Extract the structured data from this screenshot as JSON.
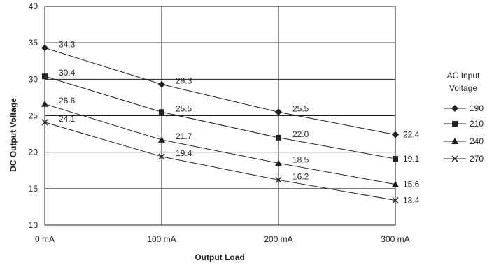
{
  "chart_data": {
    "type": "line",
    "xlabel": "Output Load",
    "ylabel": "DC Output Voltage",
    "categories": [
      "0 mA",
      "100 mA",
      "200 mA",
      "300 mA"
    ],
    "ylim": [
      10,
      40
    ],
    "yticks": [
      "10",
      "15",
      "20",
      "25",
      "30",
      "35",
      "40"
    ],
    "grid": true,
    "legend": {
      "title_lines": [
        "AC Input",
        "Voltage"
      ],
      "position": "right"
    },
    "series": [
      {
        "name": "190",
        "marker": "diamond",
        "values": [
          34.3,
          29.3,
          25.5,
          22.4
        ],
        "labels": [
          "34.3",
          "29.3",
          "25.5",
          "22.4"
        ]
      },
      {
        "name": "210",
        "marker": "square",
        "values": [
          30.4,
          25.5,
          22.0,
          19.1
        ],
        "labels": [
          "30.4",
          "25.5",
          "22.0",
          "19.1"
        ]
      },
      {
        "name": "240",
        "marker": "triangle",
        "values": [
          26.6,
          21.7,
          18.5,
          15.6
        ],
        "labels": [
          "26.6",
          "21.7",
          "18.5",
          "15.6"
        ]
      },
      {
        "name": "270",
        "marker": "x",
        "values": [
          24.1,
          19.4,
          16.2,
          13.4
        ],
        "labels": [
          "24.1",
          "19.4",
          "16.2",
          "13.4"
        ]
      }
    ],
    "colors": {
      "line": "#231f20",
      "grid": "#231f20"
    }
  }
}
